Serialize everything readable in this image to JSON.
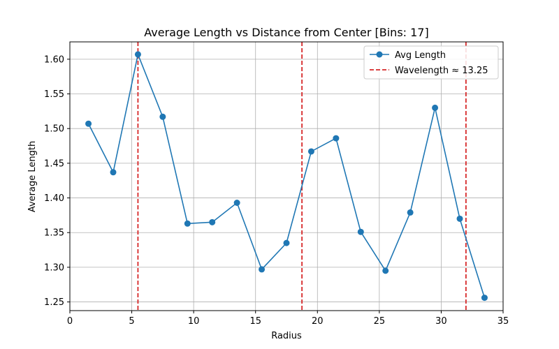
{
  "chart_data": {
    "type": "line",
    "title": "Average Length vs Distance from Center [Bins: 17]",
    "xlabel": "Radius",
    "ylabel": "Average Length",
    "xlim": [
      0,
      35
    ],
    "ylim": [
      1.2375,
      1.625
    ],
    "x_ticks": [
      0,
      5,
      10,
      15,
      20,
      25,
      30,
      35
    ],
    "y_ticks": [
      1.25,
      1.3,
      1.35,
      1.4,
      1.45,
      1.5,
      1.55,
      1.6
    ],
    "grid": true,
    "legend_position": "top-right",
    "series": [
      {
        "name": "Avg Length",
        "color": "#1f77b4",
        "marker": "circle",
        "x": [
          1.5,
          3.5,
          5.5,
          7.5,
          9.5,
          11.5,
          13.5,
          15.5,
          17.5,
          19.5,
          21.5,
          23.5,
          25.5,
          27.5,
          29.5,
          31.5,
          33.5
        ],
        "y": [
          1.507,
          1.437,
          1.607,
          1.517,
          1.363,
          1.365,
          1.393,
          1.297,
          1.335,
          1.467,
          1.486,
          1.351,
          1.295,
          1.379,
          1.53,
          1.37,
          1.256
        ]
      }
    ],
    "vlines": {
      "label": "Wavelength ≈ 13.25",
      "color": "#d62728",
      "style": "dashed",
      "x": [
        5.5,
        18.75,
        32.0
      ]
    }
  }
}
